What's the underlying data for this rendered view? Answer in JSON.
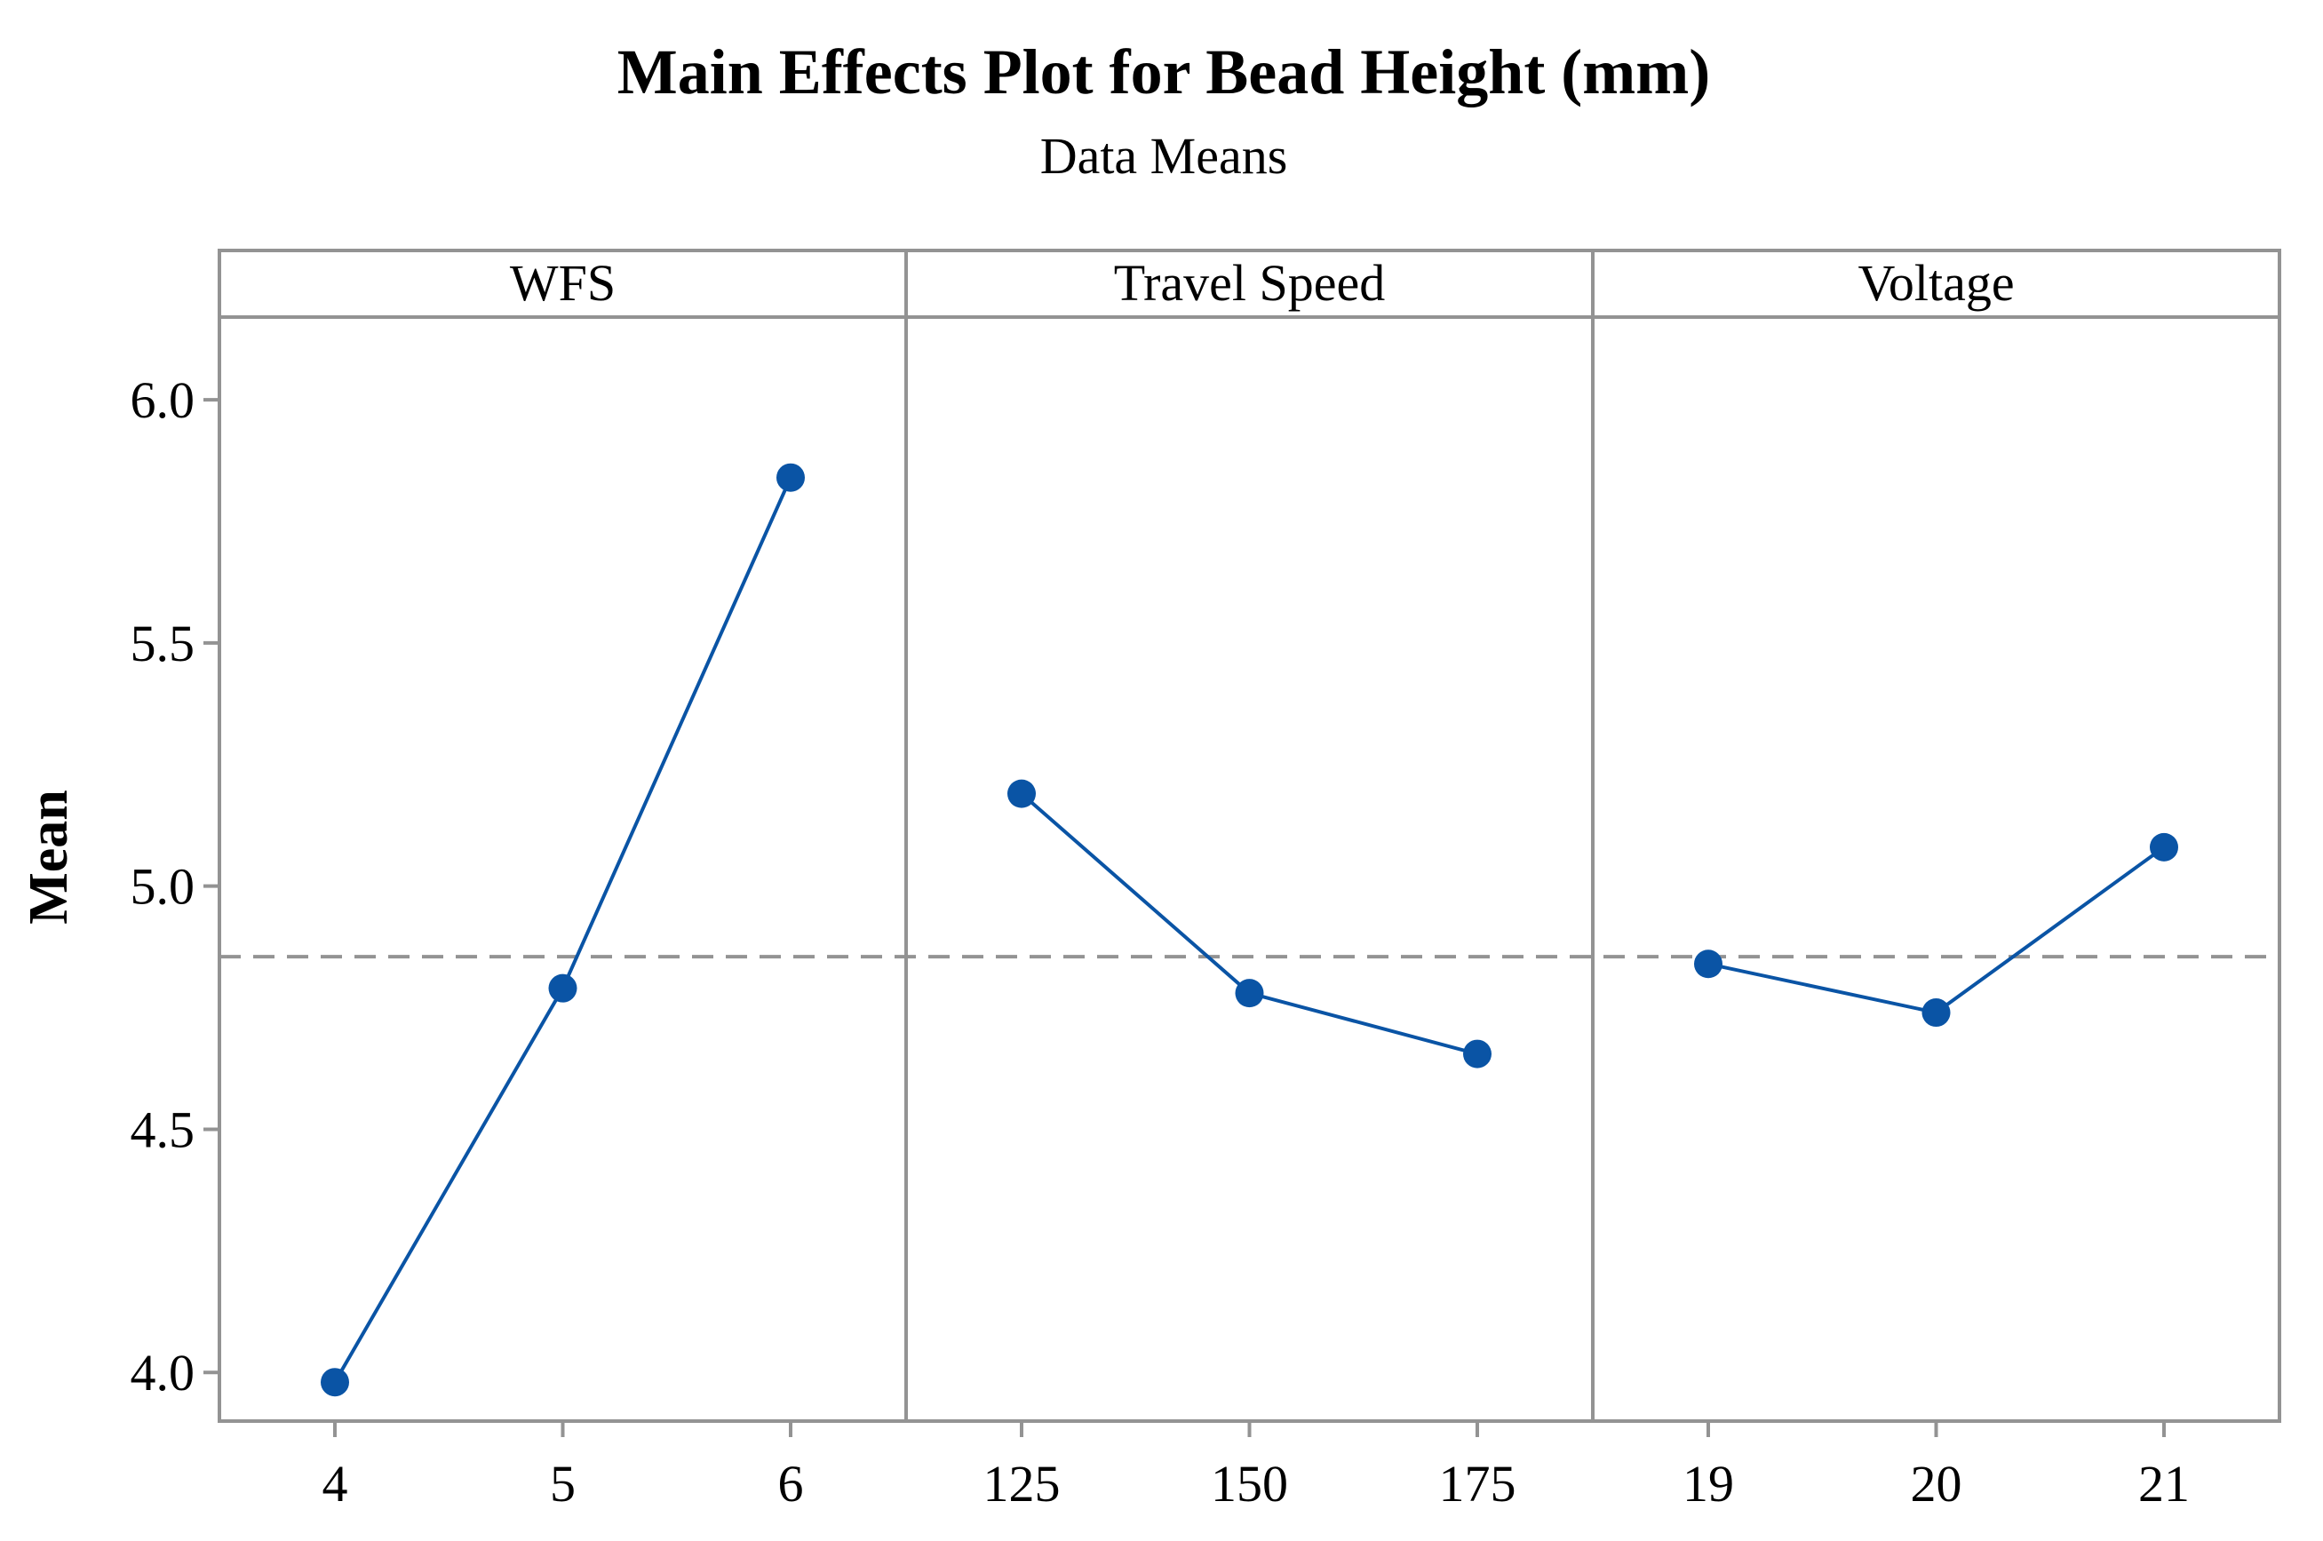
{
  "chart_data": {
    "type": "line",
    "title": "Main Effects Plot for Bead Height (mm)",
    "subtitle": "Data Means",
    "ylabel": "Mean",
    "ylim": [
      3.9,
      6.17
    ],
    "yticks": [
      "4.0",
      "4.5",
      "5.0",
      "5.5",
      "6.0"
    ],
    "reference_mean": 4.855,
    "colors": {
      "series": "#0a54a5",
      "frame": "#939393"
    },
    "panels": [
      {
        "name": "WFS",
        "categories": [
          "4",
          "5",
          "6"
        ],
        "values": [
          3.98,
          4.79,
          5.84
        ]
      },
      {
        "name": "Travel Speed",
        "categories": [
          "125",
          "150",
          "175"
        ],
        "values": [
          5.19,
          4.78,
          4.655
        ]
      },
      {
        "name": "Voltage",
        "categories": [
          "19",
          "20",
          "21"
        ],
        "values": [
          4.84,
          4.74,
          5.08
        ]
      }
    ]
  }
}
